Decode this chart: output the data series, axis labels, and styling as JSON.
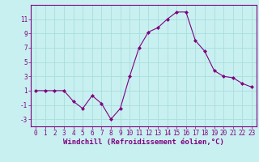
{
  "x": [
    0,
    1,
    2,
    3,
    4,
    5,
    6,
    7,
    8,
    9,
    10,
    11,
    12,
    13,
    14,
    15,
    16,
    17,
    18,
    19,
    20,
    21,
    22,
    23
  ],
  "y": [
    1.0,
    1.0,
    1.0,
    1.0,
    -0.5,
    -1.5,
    0.3,
    -0.8,
    -3.0,
    -1.5,
    3.0,
    7.0,
    9.2,
    9.8,
    11.0,
    12.0,
    12.0,
    8.0,
    6.5,
    3.8,
    3.0,
    2.8,
    2.0,
    1.5
  ],
  "line_color": "#800080",
  "marker": "D",
  "marker_size": 2,
  "bg_color": "#c8f0f0",
  "grid_color": "#aadddd",
  "xlabel": "Windchill (Refroidissement éolien,°C)",
  "xlabel_color": "#800080",
  "tick_color": "#800080",
  "spine_color": "#800080",
  "xlim": [
    -0.5,
    23.5
  ],
  "ylim": [
    -4,
    13
  ],
  "yticks": [
    -3,
    -1,
    1,
    3,
    5,
    7,
    9,
    11
  ],
  "xticks": [
    0,
    1,
    2,
    3,
    4,
    5,
    6,
    7,
    8,
    9,
    10,
    11,
    12,
    13,
    14,
    15,
    16,
    17,
    18,
    19,
    20,
    21,
    22,
    23
  ],
  "label_fontsize": 6.5,
  "tick_fontsize": 5.5,
  "xlabel_fontsize": 6.5
}
